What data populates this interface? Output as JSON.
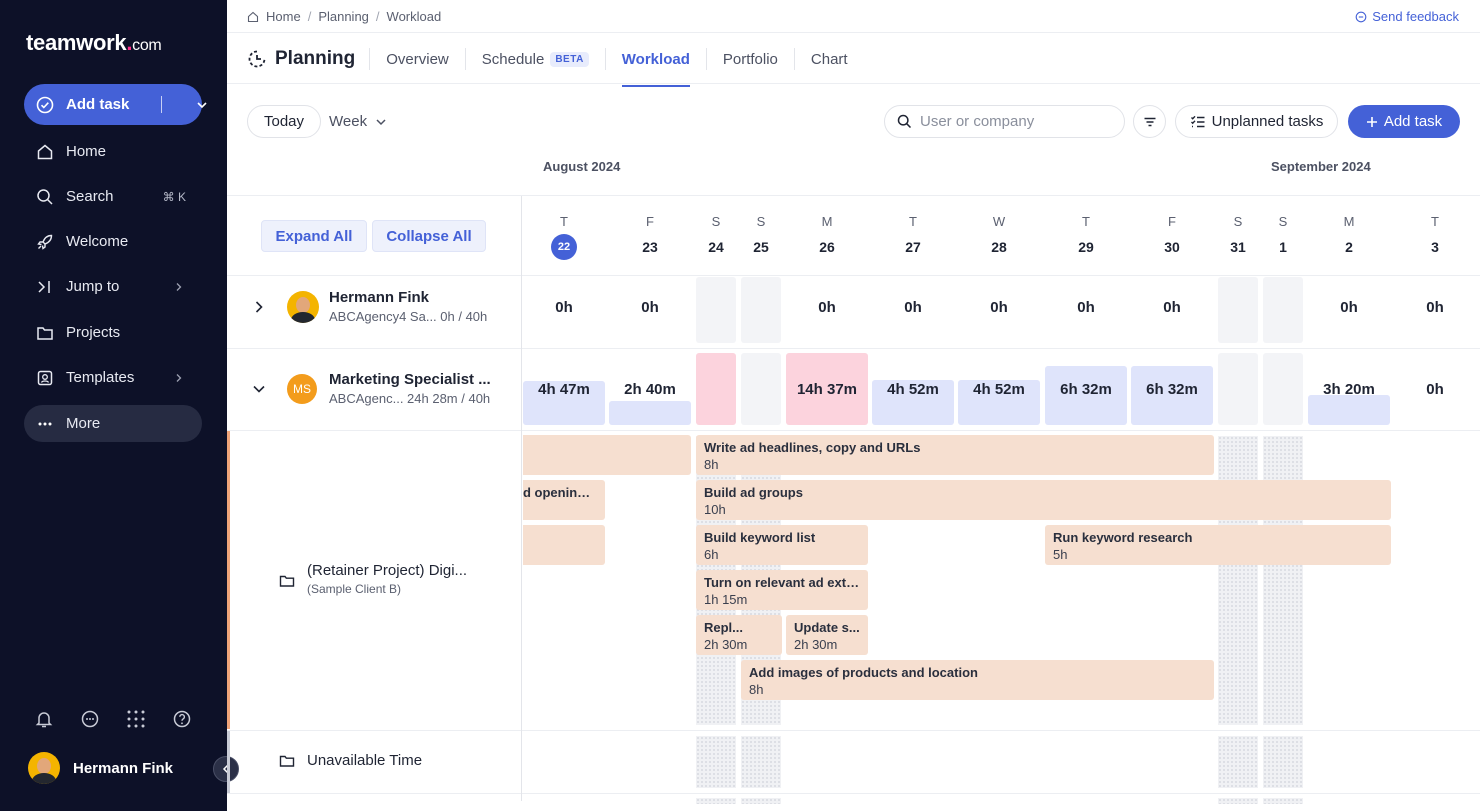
{
  "sidebar": {
    "logo": {
      "brand": "teamwork",
      "dot": ".",
      "suffix": "com"
    },
    "add_task": "Add task",
    "items": [
      {
        "label": "Home"
      },
      {
        "label": "Search",
        "shortcut": "⌘ K"
      },
      {
        "label": "Welcome"
      },
      {
        "label": "Jump to"
      },
      {
        "label": "Projects"
      },
      {
        "label": "Templates"
      },
      {
        "label": "More"
      }
    ],
    "user": "Hermann Fink"
  },
  "breadcrumb": [
    "Home",
    "Planning",
    "Workload"
  ],
  "feedback": "Send feedback",
  "tabs": {
    "title": "Planning",
    "items": [
      "Overview",
      "Schedule",
      "Workload",
      "Portfolio",
      "Chart"
    ],
    "beta": "BETA",
    "active": "Workload"
  },
  "toolbar": {
    "today": "Today",
    "range": "Week",
    "search_placeholder": "User or company",
    "unplanned": "Unplanned tasks",
    "add_task": "Add task"
  },
  "months": [
    "August 2024",
    "September 2024"
  ],
  "grid": {
    "expand_all": "Expand All",
    "collapse_all": "Collapse All"
  },
  "days": [
    {
      "l": "T",
      "n": "22",
      "today": true
    },
    {
      "l": "F",
      "n": "23"
    },
    {
      "l": "S",
      "n": "24"
    },
    {
      "l": "S",
      "n": "25"
    },
    {
      "l": "M",
      "n": "26"
    },
    {
      "l": "T",
      "n": "27"
    },
    {
      "l": "W",
      "n": "28"
    },
    {
      "l": "T",
      "n": "29"
    },
    {
      "l": "F",
      "n": "30"
    },
    {
      "l": "S",
      "n": "31"
    },
    {
      "l": "S",
      "n": "1"
    },
    {
      "l": "M",
      "n": "2"
    },
    {
      "l": "T",
      "n": "3"
    }
  ],
  "users": [
    {
      "name": "Hermann Fink",
      "sub": "ABCAgency4 Sa...  0h / 40h",
      "hours": [
        "0h",
        "0h",
        "",
        "",
        "0h",
        "0h",
        "0h",
        "0h",
        "0h",
        "",
        "",
        "0h",
        "0h"
      ]
    },
    {
      "name": "Marketing Specialist ...",
      "initials": "MS",
      "sub": "ABCAgenc...  24h 28m / 40h",
      "hours": [
        "4h 47m",
        "2h 40m",
        "",
        "",
        "14h 37m",
        "4h 52m",
        "4h 52m",
        "6h 32m",
        "6h 32m",
        "",
        "",
        "3h 20m",
        "0h"
      ]
    }
  ],
  "project": {
    "name": "(Retainer Project) Digi...",
    "client": "(Sample Client B)"
  },
  "tasks": [
    {
      "name": "",
      "hours": ""
    },
    {
      "name": "d opening ...",
      "hours": ""
    },
    {
      "name": "",
      "hours": ""
    },
    {
      "name": "Write ad headlines, copy and URLs",
      "hours": "8h"
    },
    {
      "name": "Build ad groups",
      "hours": "10h"
    },
    {
      "name": "Build keyword list",
      "hours": "6h"
    },
    {
      "name": "Run keyword research",
      "hours": "5h"
    },
    {
      "name": "Turn on relevant ad exte...",
      "hours": "1h 15m"
    },
    {
      "name": "Repl...",
      "hours": "2h 30m"
    },
    {
      "name": "Update s...",
      "hours": "2h 30m"
    },
    {
      "name": "Add images of products and location",
      "hours": "8h"
    }
  ],
  "unavailable": "Unavailable Time",
  "colors": {
    "accent": "#4461d7",
    "sidebar": "#0d1128",
    "task": "#f6dfd0",
    "load": "#dfe4fb",
    "overload": "#fcd3dd"
  }
}
